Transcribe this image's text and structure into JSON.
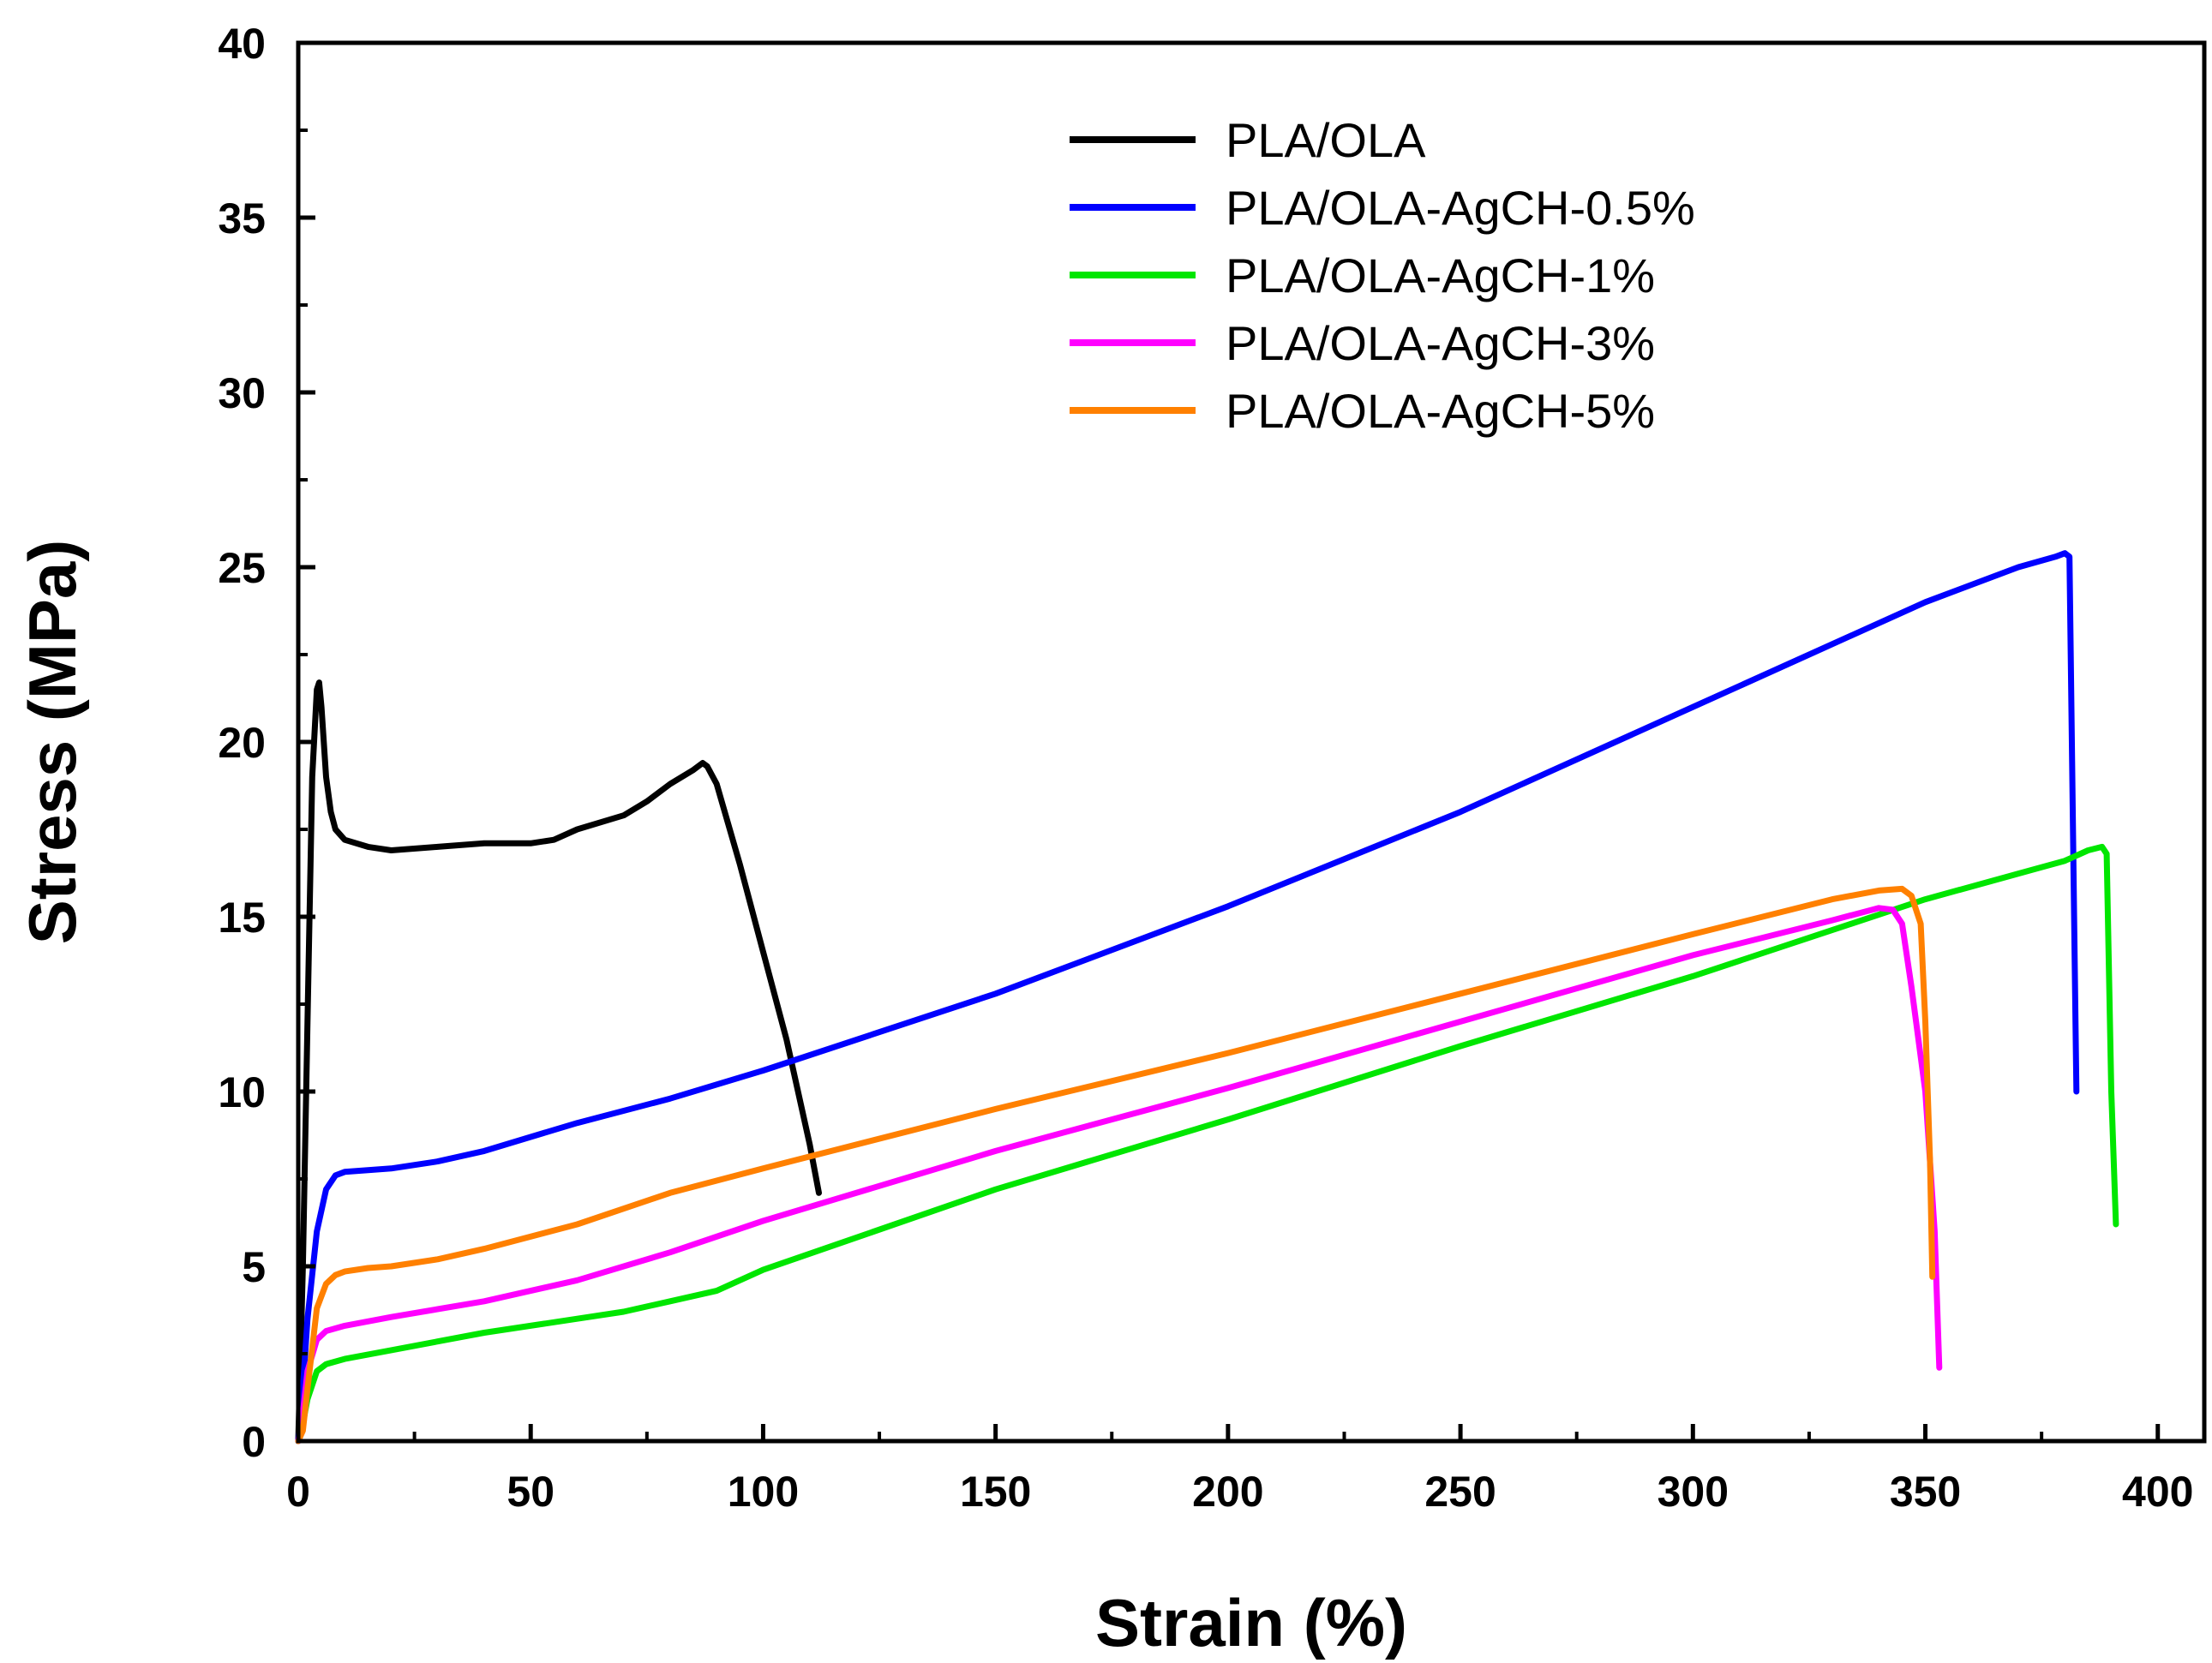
{
  "chart_data": {
    "type": "line",
    "title": "",
    "xlabel": "Strain (%)",
    "ylabel": "Stress (MPa)",
    "xlim": [
      0,
      410
    ],
    "ylim": [
      0,
      40
    ],
    "xticks": [
      0,
      50,
      100,
      150,
      200,
      250,
      300,
      350,
      400
    ],
    "xtick_labels": [
      "0",
      "50",
      "100",
      "150",
      "200",
      "250",
      "300",
      "350",
      "400"
    ],
    "yticks": [
      0,
      5,
      10,
      15,
      20,
      25,
      30,
      35,
      40
    ],
    "ytick_labels": [
      "0",
      "5",
      "10",
      "15",
      "20",
      "25",
      "30",
      "35",
      "40"
    ],
    "grid": false,
    "legend_position": "top-center",
    "series": [
      {
        "name": "PLA/OLA",
        "color": "#000000",
        "x": [
          0,
          1,
          2,
          3,
          4,
          4.5,
          5,
          6,
          7,
          8,
          10,
          15,
          20,
          30,
          40,
          50,
          55,
          60,
          70,
          75,
          80,
          85,
          87,
          88,
          90,
          95,
          100,
          105,
          110,
          112
        ],
        "y": [
          0,
          5,
          12,
          19,
          21.5,
          21.7,
          21,
          19,
          18,
          17.5,
          17.2,
          17,
          16.9,
          17,
          17.1,
          17.1,
          17.2,
          17.5,
          17.9,
          18.3,
          18.8,
          19.2,
          19.4,
          19.3,
          18.8,
          16.5,
          14,
          11.5,
          8.5,
          7.1
        ]
      },
      {
        "name": "PLA/OLA-AgCH-0.5%",
        "color": "#0000ff",
        "x": [
          0,
          1,
          2,
          4,
          6,
          8,
          10,
          15,
          20,
          30,
          40,
          50,
          60,
          80,
          100,
          150,
          200,
          250,
          300,
          350,
          370,
          378,
          380,
          381,
          382,
          382.5
        ],
        "y": [
          0,
          1.5,
          3.5,
          6,
          7.2,
          7.6,
          7.7,
          7.75,
          7.8,
          8,
          8.3,
          8.7,
          9.1,
          9.8,
          10.6,
          12.8,
          15.3,
          18,
          21,
          24,
          25,
          25.3,
          25.4,
          25.3,
          15,
          10
        ]
      },
      {
        "name": "PLA/OLA-AgCH-1%",
        "color": "#00e600",
        "x": [
          0,
          1,
          2,
          4,
          6,
          10,
          20,
          40,
          60,
          70,
          80,
          90,
          100,
          150,
          200,
          250,
          300,
          350,
          380,
          385,
          388,
          389,
          390,
          391
        ],
        "y": [
          0,
          0.5,
          1.2,
          2,
          2.2,
          2.35,
          2.6,
          3.1,
          3.5,
          3.7,
          4,
          4.3,
          4.9,
          7.2,
          9.2,
          11.3,
          13.3,
          15.5,
          16.6,
          16.9,
          17,
          16.8,
          10,
          6.2
        ]
      },
      {
        "name": "PLA/OLA-AgCH-3%",
        "color": "#ff00ff",
        "x": [
          0,
          1,
          2,
          4,
          6,
          10,
          20,
          40,
          60,
          80,
          100,
          150,
          200,
          250,
          300,
          330,
          340,
          343,
          345,
          347,
          350,
          352,
          353
        ],
        "y": [
          0,
          0.8,
          2,
          2.9,
          3.15,
          3.3,
          3.55,
          4,
          4.6,
          5.4,
          6.3,
          8.3,
          10.1,
          12,
          13.9,
          14.9,
          15.25,
          15.2,
          14.8,
          13,
          10,
          6,
          2.1
        ]
      },
      {
        "name": "PLA/OLA-AgCH-5%",
        "color": "#ff8000",
        "x": [
          0,
          1,
          2,
          4,
          6,
          8,
          10,
          15,
          20,
          30,
          40,
          60,
          80,
          100,
          150,
          200,
          250,
          300,
          330,
          340,
          345,
          347,
          349,
          350,
          351,
          351.5
        ],
        "y": [
          0,
          0.3,
          1.5,
          3.8,
          4.5,
          4.75,
          4.85,
          4.95,
          5,
          5.2,
          5.5,
          6.2,
          7.1,
          7.8,
          9.5,
          11.1,
          12.8,
          14.5,
          15.5,
          15.75,
          15.8,
          15.6,
          14.8,
          12,
          8,
          4.7
        ]
      }
    ]
  }
}
